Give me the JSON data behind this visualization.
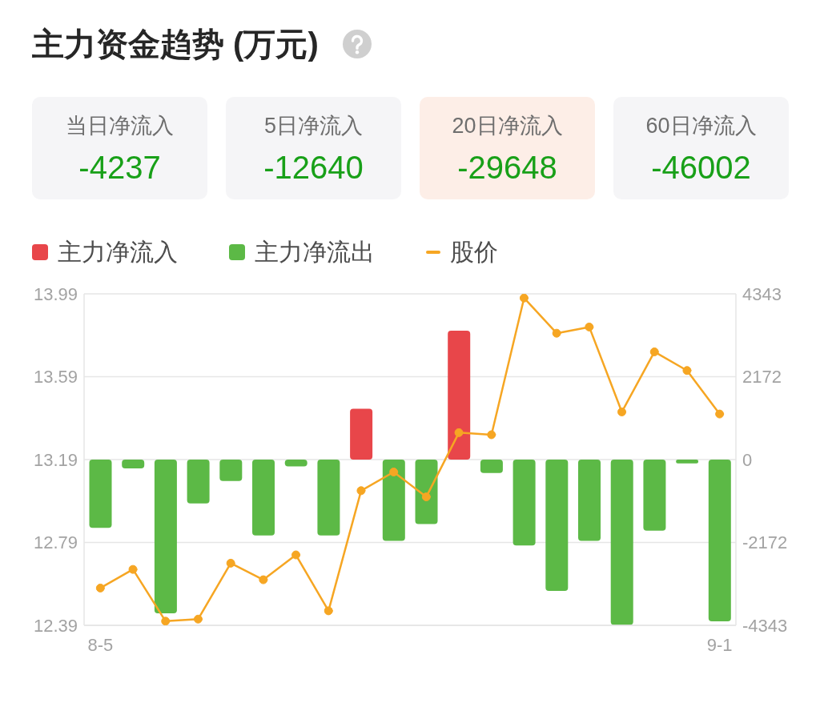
{
  "chart_data": [
    {
      "type": "other",
      "title": "主力资金趋势 (万元)",
      "categories": [
        "当日净流入",
        "5日净流入",
        "20日净流入",
        "60日净流入"
      ],
      "values": [
        -4237,
        -12640,
        -29648,
        -46002
      ],
      "data_labels": true,
      "colors": [
        "#f5f5f7",
        "#f5f5f7",
        "#fdeee7",
        "#f5f5f7"
      ],
      "color": "#18a018"
    },
    {
      "type": "bar",
      "categories": [
        "8-5",
        null,
        null,
        null,
        null,
        null,
        null,
        null,
        null,
        null,
        null,
        null,
        null,
        null,
        null,
        null,
        null,
        null,
        null,
        "9-1"
      ],
      "stacked": true,
      "series": [
        {
          "name": "主力净流入",
          "color": "#e8464a",
          "axis": "y2",
          "values": [
            null,
            null,
            null,
            null,
            null,
            null,
            null,
            null,
            1330,
            null,
            null,
            3380,
            null,
            null,
            null,
            null,
            null,
            null,
            null,
            null
          ]
        },
        {
          "name": "主力净流出",
          "color": "#5cb946",
          "axis": "y2",
          "values": [
            -1790,
            -230,
            -4030,
            -1150,
            -560,
            -1990,
            -180,
            -1990,
            null,
            -2130,
            -1690,
            null,
            -350,
            -2250,
            -3440,
            -2130,
            -4330,
            -1860,
            -100,
            -4237
          ]
        },
        {
          "name": "股价",
          "type": "line",
          "color": "#f6a623",
          "axis": "y",
          "values": [
            12.57,
            12.66,
            12.41,
            12.42,
            12.69,
            12.61,
            12.73,
            12.46,
            13.04,
            13.13,
            13.01,
            13.32,
            13.31,
            13.97,
            13.8,
            13.83,
            13.42,
            13.71,
            13.62,
            13.41
          ]
        }
      ],
      "ylim": [
        12.39,
        13.99
      ],
      "yticks": [
        12.39,
        12.79,
        13.19,
        13.59,
        13.99
      ],
      "y2lim": [
        -4343,
        4343
      ],
      "y2ticks": [
        -4343,
        -2172,
        0,
        2172,
        4343
      ],
      "grid": "y",
      "legend": "top left",
      "marker": "circle",
      "line_style": "solid"
    }
  ]
}
